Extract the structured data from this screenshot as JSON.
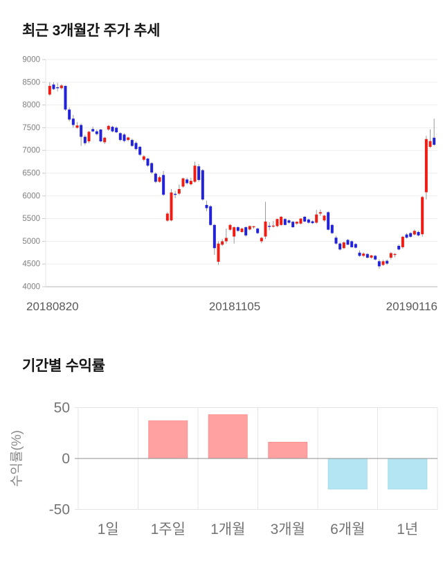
{
  "chart_data": [
    {
      "type": "candlestick",
      "title": "최근 3개월간 주가 추세",
      "x_tick_labels": [
        "20180820",
        "20181105",
        "20190116"
      ],
      "y_ticks": [
        9000,
        8500,
        8000,
        7500,
        7000,
        6500,
        6000,
        5500,
        5000,
        4500,
        4000
      ],
      "ylim": [
        4000,
        9000
      ],
      "grid": true,
      "up_color": "#ee1c14",
      "down_color": "#2222d6",
      "wick_color": "#999999",
      "candles_ohlc": [
        [
          8230,
          8500,
          8200,
          8420
        ],
        [
          8450,
          8500,
          8330,
          8350
        ],
        [
          8390,
          8490,
          8300,
          8380
        ],
        [
          8370,
          8460,
          8340,
          8430
        ],
        [
          8420,
          8430,
          7870,
          7900
        ],
        [
          7900,
          7950,
          7640,
          7680
        ],
        [
          7700,
          7780,
          7500,
          7560
        ],
        [
          7500,
          7620,
          7480,
          7550
        ],
        [
          7560,
          7590,
          7100,
          7300
        ],
        [
          7300,
          7340,
          7120,
          7160
        ],
        [
          7200,
          7430,
          7160,
          7410
        ],
        [
          7470,
          7520,
          7400,
          7420
        ],
        [
          7420,
          7460,
          7330,
          7360
        ],
        [
          7460,
          7470,
          7180,
          7200
        ],
        [
          7180,
          7300,
          7140,
          7280
        ],
        [
          7460,
          7560,
          7430,
          7540
        ],
        [
          7520,
          7540,
          7400,
          7420
        ],
        [
          7500,
          7530,
          7380,
          7400
        ],
        [
          7380,
          7400,
          7200,
          7230
        ],
        [
          7350,
          7380,
          7180,
          7210
        ],
        [
          7230,
          7300,
          7200,
          7285
        ],
        [
          7230,
          7260,
          7080,
          7100
        ],
        [
          7165,
          7200,
          7000,
          7030
        ],
        [
          7080,
          7100,
          6880,
          6905
        ],
        [
          6795,
          6900,
          6760,
          6870
        ],
        [
          6820,
          6840,
          6640,
          6665
        ],
        [
          6720,
          6740,
          6480,
          6515
        ],
        [
          6490,
          6520,
          6280,
          6310
        ],
        [
          6310,
          6440,
          6290,
          6410
        ],
        [
          6460,
          6550,
          6000,
          6025
        ],
        [
          5455,
          5640,
          5430,
          5610
        ],
        [
          5460,
          6150,
          5440,
          6075
        ],
        [
          6045,
          6110,
          5950,
          6040
        ],
        [
          6050,
          6250,
          6020,
          6150
        ],
        [
          6205,
          6400,
          6180,
          6385
        ],
        [
          6360,
          6400,
          6250,
          6280
        ],
        [
          6255,
          6400,
          6230,
          6330
        ],
        [
          6310,
          6750,
          6290,
          6665
        ],
        [
          6650,
          6700,
          6310,
          6350
        ],
        [
          6565,
          6590,
          5890,
          5920
        ],
        [
          5800,
          5895,
          5665,
          5730
        ],
        [
          5770,
          5800,
          5340,
          5360
        ],
        [
          5360,
          5380,
          4700,
          4850
        ],
        [
          4550,
          5000,
          4480,
          4950
        ],
        [
          4925,
          5050,
          4900,
          5000
        ],
        [
          5000,
          5280,
          4950,
          5075
        ],
        [
          5255,
          5380,
          5230,
          5360
        ],
        [
          5105,
          5330,
          4950,
          5310
        ],
        [
          5310,
          5330,
          5210,
          5230
        ],
        [
          5205,
          5300,
          5190,
          5280
        ],
        [
          5310,
          5330,
          5100,
          5130
        ],
        [
          5260,
          5350,
          5240,
          5335
        ],
        [
          5310,
          5340,
          5280,
          5330
        ],
        [
          5280,
          5300,
          5160,
          5180
        ],
        [
          5000,
          5100,
          4960,
          5075
        ],
        [
          5105,
          5870,
          5050,
          5435
        ],
        [
          5340,
          5420,
          5240,
          5330
        ],
        [
          5340,
          5450,
          5300,
          5345
        ],
        [
          5335,
          5500,
          5310,
          5490
        ],
        [
          5360,
          5560,
          5340,
          5540
        ],
        [
          5490,
          5510,
          5350,
          5360
        ],
        [
          5460,
          5480,
          5390,
          5410
        ],
        [
          5430,
          5450,
          5300,
          5310
        ],
        [
          5390,
          5440,
          5360,
          5430
        ],
        [
          5390,
          5510,
          5370,
          5500
        ],
        [
          5540,
          5560,
          5420,
          5435
        ],
        [
          5480,
          5500,
          5390,
          5410
        ],
        [
          5440,
          5460,
          5380,
          5400
        ],
        [
          5410,
          5690,
          5390,
          5590
        ],
        [
          5610,
          5700,
          5560,
          5640
        ],
        [
          5460,
          5580,
          5430,
          5565
        ],
        [
          5640,
          5660,
          5240,
          5255
        ],
        [
          5360,
          5380,
          5160,
          5180
        ],
        [
          5080,
          5120,
          4930,
          4950
        ],
        [
          4950,
          4980,
          4800,
          4820
        ],
        [
          4850,
          5000,
          4830,
          4975
        ],
        [
          5030,
          5050,
          4920,
          4925
        ],
        [
          5000,
          5020,
          4860,
          4870
        ],
        [
          4940,
          4960,
          4840,
          4860
        ],
        [
          4750,
          4800,
          4660,
          4680
        ],
        [
          4680,
          4760,
          4650,
          4730
        ],
        [
          4720,
          4740,
          4620,
          4640
        ],
        [
          4640,
          4700,
          4620,
          4690
        ],
        [
          4680,
          4700,
          4580,
          4600
        ],
        [
          4560,
          4600,
          4400,
          4450
        ],
        [
          4480,
          4590,
          4460,
          4560
        ],
        [
          4570,
          4600,
          4480,
          4510
        ],
        [
          4640,
          4760,
          4600,
          4740
        ],
        [
          4700,
          4740,
          4650,
          4720
        ],
        [
          4900,
          4930,
          4800,
          4820
        ],
        [
          4870,
          5120,
          4840,
          5100
        ],
        [
          5150,
          5180,
          5060,
          5080
        ],
        [
          5180,
          5200,
          5080,
          5100
        ],
        [
          5150,
          5260,
          5130,
          5230
        ],
        [
          5205,
          5230,
          5110,
          5130
        ],
        [
          5155,
          6000,
          5100,
          5975
        ],
        [
          6080,
          7320,
          5920,
          7250
        ],
        [
          7080,
          7460,
          7050,
          7205
        ],
        [
          7280,
          7700,
          7100,
          7125
        ]
      ]
    },
    {
      "type": "bar",
      "title": "기간별 수익률",
      "ylabel": "수익률(%)",
      "categories": [
        "1일",
        "1주일",
        "1개월",
        "3개월",
        "6개월",
        "1년"
      ],
      "values": [
        0,
        37,
        43,
        16,
        -30,
        -30
      ],
      "y_ticks": [
        50,
        0,
        -50
      ],
      "ylim": [
        -50,
        50
      ],
      "grid": true,
      "positive_color": "#ffa1a1",
      "positive_border": "#fb9292",
      "negative_color": "#b3e6f2",
      "negative_border": "#a2dcec"
    }
  ]
}
